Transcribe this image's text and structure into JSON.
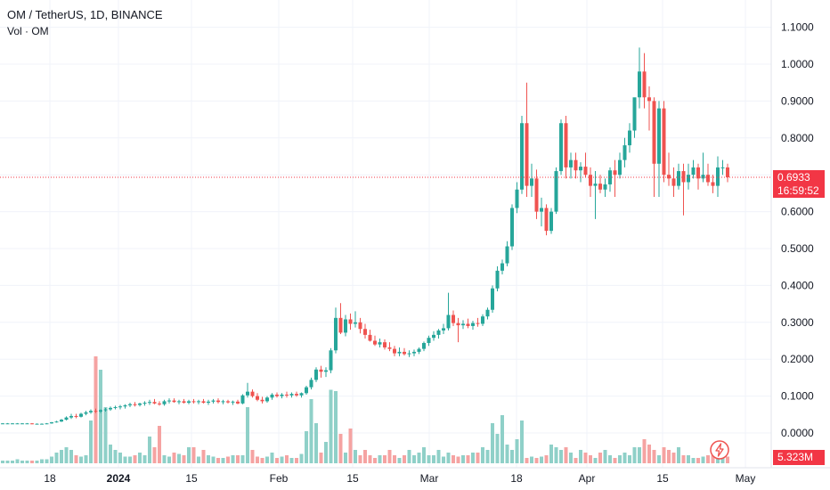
{
  "header": {
    "title": "OM / TetherUS, 1D, BINANCE",
    "vol_label": "Vol · OM"
  },
  "price_tag": {
    "price": "0.6933",
    "countdown": "16:59:52"
  },
  "volume_tag": "5.323M",
  "colors": {
    "up": "#26a69a",
    "down": "#ef5350",
    "vol_up": "#8fd0c8",
    "vol_down": "#f5a3a2",
    "last_price": "#f23645",
    "grid": "#f0f3fa"
  },
  "chart_data": {
    "type": "candlestick",
    "symbol": "OM / TetherUS",
    "interval": "1D",
    "exchange": "BINANCE",
    "y_ticks": [
      "1.1000",
      "1.0000",
      "0.9000",
      "0.8000",
      "0.7000",
      "0.6000",
      "0.5000",
      "0.4000",
      "0.3000",
      "0.2000",
      "0.1000",
      "0.0000"
    ],
    "ylim": [
      -0.03,
      1.12
    ],
    "x_ticks": [
      "18",
      "2024",
      "15",
      "Feb",
      "15",
      "Mar",
      "18",
      "Apr",
      "15",
      "May"
    ],
    "last_price": 0.6933,
    "series": [
      {
        "name": "price_ohlc",
        "note": "approximate daily OHLC readings",
        "values": [
          [
            0.026,
            0.027,
            0.025,
            0.026
          ],
          [
            0.026,
            0.027,
            0.025,
            0.026
          ],
          [
            0.026,
            0.027,
            0.025,
            0.026
          ],
          [
            0.026,
            0.027,
            0.025,
            0.026
          ],
          [
            0.026,
            0.027,
            0.025,
            0.026
          ],
          [
            0.026,
            0.027,
            0.025,
            0.026
          ],
          [
            0.026,
            0.027,
            0.024,
            0.025
          ],
          [
            0.025,
            0.026,
            0.024,
            0.025
          ],
          [
            0.025,
            0.026,
            0.024,
            0.025
          ],
          [
            0.025,
            0.027,
            0.024,
            0.026
          ],
          [
            0.026,
            0.03,
            0.025,
            0.029
          ],
          [
            0.029,
            0.033,
            0.028,
            0.031
          ],
          [
            0.031,
            0.038,
            0.03,
            0.036
          ],
          [
            0.036,
            0.045,
            0.034,
            0.042
          ],
          [
            0.042,
            0.052,
            0.038,
            0.046
          ],
          [
            0.046,
            0.052,
            0.04,
            0.044
          ],
          [
            0.044,
            0.055,
            0.042,
            0.052
          ],
          [
            0.052,
            0.06,
            0.048,
            0.056
          ],
          [
            0.056,
            0.064,
            0.052,
            0.06
          ],
          [
            0.06,
            0.066,
            0.054,
            0.058
          ],
          [
            0.058,
            0.064,
            0.054,
            0.062
          ],
          [
            0.062,
            0.068,
            0.058,
            0.064
          ],
          [
            0.064,
            0.072,
            0.06,
            0.068
          ],
          [
            0.068,
            0.074,
            0.064,
            0.07
          ],
          [
            0.07,
            0.076,
            0.064,
            0.072
          ],
          [
            0.072,
            0.078,
            0.066,
            0.075
          ],
          [
            0.075,
            0.082,
            0.07,
            0.078
          ],
          [
            0.078,
            0.084,
            0.072,
            0.076
          ],
          [
            0.076,
            0.082,
            0.072,
            0.08
          ],
          [
            0.08,
            0.086,
            0.074,
            0.082
          ],
          [
            0.082,
            0.09,
            0.076,
            0.084
          ],
          [
            0.084,
            0.092,
            0.078,
            0.08
          ],
          [
            0.08,
            0.086,
            0.074,
            0.078
          ],
          [
            0.078,
            0.09,
            0.074,
            0.086
          ],
          [
            0.086,
            0.094,
            0.08,
            0.088
          ],
          [
            0.088,
            0.094,
            0.082,
            0.084
          ],
          [
            0.084,
            0.09,
            0.078,
            0.086
          ],
          [
            0.086,
            0.092,
            0.08,
            0.082
          ],
          [
            0.082,
            0.09,
            0.078,
            0.086
          ],
          [
            0.086,
            0.092,
            0.08,
            0.084
          ],
          [
            0.084,
            0.09,
            0.078,
            0.086
          ],
          [
            0.086,
            0.092,
            0.08,
            0.082
          ],
          [
            0.082,
            0.09,
            0.076,
            0.085
          ],
          [
            0.085,
            0.092,
            0.08,
            0.088
          ],
          [
            0.088,
            0.094,
            0.08,
            0.084
          ],
          [
            0.084,
            0.09,
            0.078,
            0.086
          ],
          [
            0.086,
            0.09,
            0.08,
            0.083
          ],
          [
            0.083,
            0.088,
            0.076,
            0.085
          ],
          [
            0.085,
            0.09,
            0.078,
            0.08
          ],
          [
            0.08,
            0.105,
            0.078,
            0.102
          ],
          [
            0.102,
            0.136,
            0.096,
            0.112
          ],
          [
            0.112,
            0.118,
            0.096,
            0.1
          ],
          [
            0.1,
            0.108,
            0.086,
            0.09
          ],
          [
            0.09,
            0.098,
            0.08,
            0.086
          ],
          [
            0.086,
            0.1,
            0.082,
            0.096
          ],
          [
            0.096,
            0.108,
            0.09,
            0.104
          ],
          [
            0.104,
            0.11,
            0.096,
            0.1
          ],
          [
            0.1,
            0.108,
            0.094,
            0.104
          ],
          [
            0.104,
            0.112,
            0.096,
            0.102
          ],
          [
            0.102,
            0.11,
            0.096,
            0.106
          ],
          [
            0.106,
            0.112,
            0.098,
            0.102
          ],
          [
            0.102,
            0.11,
            0.096,
            0.108
          ],
          [
            0.108,
            0.128,
            0.104,
            0.124
          ],
          [
            0.124,
            0.15,
            0.118,
            0.144
          ],
          [
            0.144,
            0.178,
            0.138,
            0.172
          ],
          [
            0.172,
            0.182,
            0.15,
            0.166
          ],
          [
            0.166,
            0.178,
            0.152,
            0.17
          ],
          [
            0.17,
            0.23,
            0.162,
            0.224
          ],
          [
            0.224,
            0.34,
            0.216,
            0.312
          ],
          [
            0.312,
            0.352,
            0.268,
            0.272
          ],
          [
            0.272,
            0.32,
            0.262,
            0.308
          ],
          [
            0.308,
            0.324,
            0.28,
            0.296
          ],
          [
            0.296,
            0.33,
            0.286,
            0.3
          ],
          [
            0.3,
            0.312,
            0.27,
            0.282
          ],
          [
            0.282,
            0.296,
            0.256,
            0.266
          ],
          [
            0.266,
            0.28,
            0.248,
            0.25
          ],
          [
            0.25,
            0.264,
            0.236,
            0.24
          ],
          [
            0.24,
            0.256,
            0.232,
            0.246
          ],
          [
            0.246,
            0.254,
            0.226,
            0.232
          ],
          [
            0.232,
            0.246,
            0.222,
            0.228
          ],
          [
            0.228,
            0.236,
            0.208,
            0.216
          ],
          [
            0.216,
            0.232,
            0.208,
            0.22
          ],
          [
            0.22,
            0.23,
            0.21,
            0.214
          ],
          [
            0.214,
            0.224,
            0.206,
            0.216
          ],
          [
            0.216,
            0.226,
            0.208,
            0.22
          ],
          [
            0.22,
            0.232,
            0.214,
            0.228
          ],
          [
            0.228,
            0.248,
            0.222,
            0.244
          ],
          [
            0.244,
            0.264,
            0.236,
            0.258
          ],
          [
            0.258,
            0.276,
            0.25,
            0.266
          ],
          [
            0.266,
            0.282,
            0.256,
            0.278
          ],
          [
            0.278,
            0.296,
            0.268,
            0.284
          ],
          [
            0.284,
            0.38,
            0.278,
            0.32
          ],
          [
            0.32,
            0.332,
            0.29,
            0.298
          ],
          [
            0.298,
            0.312,
            0.246,
            0.292
          ],
          [
            0.292,
            0.306,
            0.282,
            0.296
          ],
          [
            0.296,
            0.31,
            0.284,
            0.29
          ],
          [
            0.29,
            0.304,
            0.28,
            0.298
          ],
          [
            0.298,
            0.312,
            0.288,
            0.296
          ],
          [
            0.296,
            0.322,
            0.29,
            0.316
          ],
          [
            0.316,
            0.34,
            0.308,
            0.334
          ],
          [
            0.334,
            0.4,
            0.326,
            0.392
          ],
          [
            0.392,
            0.452,
            0.384,
            0.44
          ],
          [
            0.44,
            0.47,
            0.43,
            0.46
          ],
          [
            0.46,
            0.52,
            0.452,
            0.506
          ],
          [
            0.506,
            0.62,
            0.496,
            0.61
          ],
          [
            0.61,
            0.68,
            0.596,
            0.66
          ],
          [
            0.66,
            0.86,
            0.648,
            0.84
          ],
          [
            0.84,
            0.95,
            0.64,
            0.67
          ],
          [
            0.67,
            0.73,
            0.64,
            0.69
          ],
          [
            0.69,
            0.714,
            0.58,
            0.6
          ],
          [
            0.6,
            0.638,
            0.56,
            0.61
          ],
          [
            0.61,
            0.62,
            0.536,
            0.548
          ],
          [
            0.548,
            0.61,
            0.54,
            0.6
          ],
          [
            0.6,
            0.72,
            0.594,
            0.71
          ],
          [
            0.71,
            0.85,
            0.7,
            0.84
          ],
          [
            0.84,
            0.86,
            0.69,
            0.72
          ],
          [
            0.72,
            0.76,
            0.69,
            0.74
          ],
          [
            0.74,
            0.76,
            0.69,
            0.712
          ],
          [
            0.712,
            0.734,
            0.68,
            0.722
          ],
          [
            0.722,
            0.76,
            0.694,
            0.7
          ],
          [
            0.7,
            0.72,
            0.64,
            0.67
          ],
          [
            0.67,
            0.71,
            0.58,
            0.676
          ],
          [
            0.676,
            0.7,
            0.65,
            0.66
          ],
          [
            0.66,
            0.69,
            0.64,
            0.674
          ],
          [
            0.674,
            0.72,
            0.654,
            0.712
          ],
          [
            0.712,
            0.74,
            0.64,
            0.7
          ],
          [
            0.7,
            0.76,
            0.69,
            0.74
          ],
          [
            0.74,
            0.8,
            0.72,
            0.78
          ],
          [
            0.78,
            0.84,
            0.76,
            0.82
          ],
          [
            0.82,
            0.9,
            0.8,
            0.91
          ],
          [
            0.91,
            1.045,
            0.88,
            0.98
          ],
          [
            0.98,
            1.03,
            0.88,
            0.91
          ],
          [
            0.91,
            0.94,
            0.82,
            0.9
          ],
          [
            0.9,
            0.91,
            0.64,
            0.73
          ],
          [
            0.73,
            0.9,
            0.64,
            0.88
          ],
          [
            0.88,
            0.9,
            0.68,
            0.7
          ],
          [
            0.7,
            0.76,
            0.67,
            0.69
          ],
          [
            0.69,
            0.72,
            0.64,
            0.67
          ],
          [
            0.67,
            0.73,
            0.66,
            0.71
          ],
          [
            0.71,
            0.73,
            0.59,
            0.68
          ],
          [
            0.68,
            0.73,
            0.66,
            0.7
          ],
          [
            0.7,
            0.74,
            0.69,
            0.72
          ],
          [
            0.72,
            0.73,
            0.66,
            0.69
          ],
          [
            0.69,
            0.76,
            0.68,
            0.7
          ],
          [
            0.7,
            0.73,
            0.67,
            0.68
          ],
          [
            0.68,
            0.7,
            0.65,
            0.67
          ],
          [
            0.67,
            0.75,
            0.64,
            0.72
          ],
          [
            0.72,
            0.74,
            0.7,
            0.72
          ],
          [
            0.72,
            0.73,
            0.68,
            0.6933
          ]
        ]
      },
      {
        "name": "volume",
        "note": "approximate relative volume (0-1 of the volume pane max)",
        "values": [
          0.02,
          0.02,
          0.02,
          0.03,
          0.02,
          0.02,
          0.02,
          0.02,
          0.03,
          0.03,
          0.05,
          0.08,
          0.1,
          0.12,
          0.1,
          0.06,
          0.05,
          0.06,
          0.32,
          0.8,
          0.7,
          0.42,
          0.14,
          0.1,
          0.08,
          0.05,
          0.05,
          0.06,
          0.08,
          0.06,
          0.2,
          0.12,
          0.28,
          0.06,
          0.05,
          0.08,
          0.07,
          0.06,
          0.12,
          0.12,
          0.05,
          0.1,
          0.06,
          0.05,
          0.04,
          0.04,
          0.05,
          0.06,
          0.06,
          0.06,
          0.42,
          0.1,
          0.05,
          0.04,
          0.05,
          0.08,
          0.04,
          0.05,
          0.06,
          0.04,
          0.04,
          0.07,
          0.24,
          0.48,
          0.3,
          0.08,
          0.16,
          0.55,
          0.54,
          0.22,
          0.08,
          0.26,
          0.1,
          0.06,
          0.1,
          0.06,
          0.04,
          0.06,
          0.06,
          0.1,
          0.06,
          0.04,
          0.06,
          0.1,
          0.06,
          0.08,
          0.12,
          0.06,
          0.06,
          0.1,
          0.05,
          0.08,
          0.06,
          0.05,
          0.06,
          0.06,
          0.08,
          0.08,
          0.12,
          0.1,
          0.3,
          0.22,
          0.36,
          0.14,
          0.1,
          0.18,
          0.32,
          0.04,
          0.05,
          0.04,
          0.05,
          0.06,
          0.14,
          0.12,
          0.1,
          0.12,
          0.08,
          0.04,
          0.1,
          0.08,
          0.06,
          0.04,
          0.08,
          0.1,
          0.06,
          0.04,
          0.06,
          0.08,
          0.06,
          0.12,
          0.12,
          0.18,
          0.14,
          0.1,
          0.06,
          0.12,
          0.1,
          0.08,
          0.12,
          0.06,
          0.06,
          0.04,
          0.04,
          0.05,
          0.06,
          0.06,
          0.06,
          0.05,
          0.05,
          0.04,
          0.04
        ]
      }
    ]
  }
}
